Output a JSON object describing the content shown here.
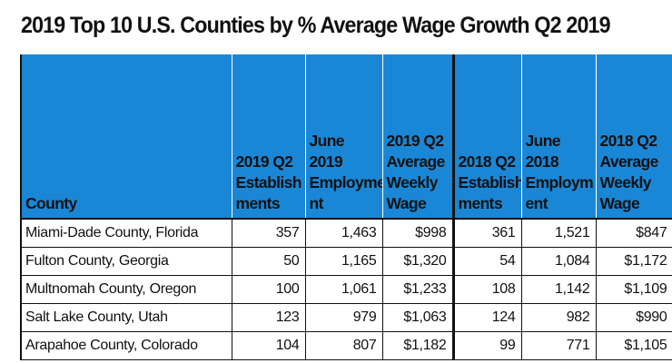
{
  "title": "2019 Top 10 U.S. Counties by % Average Wage Growth Q2 2019",
  "table": {
    "headers": [
      [
        "County"
      ],
      [
        "2019 Q2",
        "Establish",
        "ments"
      ],
      [
        "June",
        "2019",
        "Employme",
        "nt"
      ],
      [
        "2019 Q2",
        "Average",
        "Weekly",
        "Wage"
      ],
      [
        "2018 Q2",
        "Establish",
        "ments"
      ],
      [
        "June",
        "2018",
        "Employm",
        "ent"
      ],
      [
        "2018 Q2",
        "Average",
        "Weekly",
        "Wage"
      ]
    ],
    "rows": [
      [
        "Miami-Dade County, Florida",
        "357",
        "1,463",
        "$998",
        "361",
        "1,521",
        "$847"
      ],
      [
        "Fulton County, Georgia",
        "50",
        "1,165",
        "$1,320",
        "54",
        "1,084",
        "$1,172"
      ],
      [
        "Multnomah County, Oregon",
        "100",
        "1,061",
        "$1,233",
        "108",
        "1,142",
        "$1,109"
      ],
      [
        "Salt Lake County, Utah",
        "123",
        "979",
        "$1,063",
        "124",
        "982",
        "$990"
      ],
      [
        "Arapahoe County, Colorado",
        "104",
        "807",
        "$1,182",
        "99",
        "771",
        "$1,105"
      ]
    ]
  },
  "colors": {
    "header_fill": "#1a87d6",
    "text": "#111111",
    "background": "#ffffff"
  }
}
